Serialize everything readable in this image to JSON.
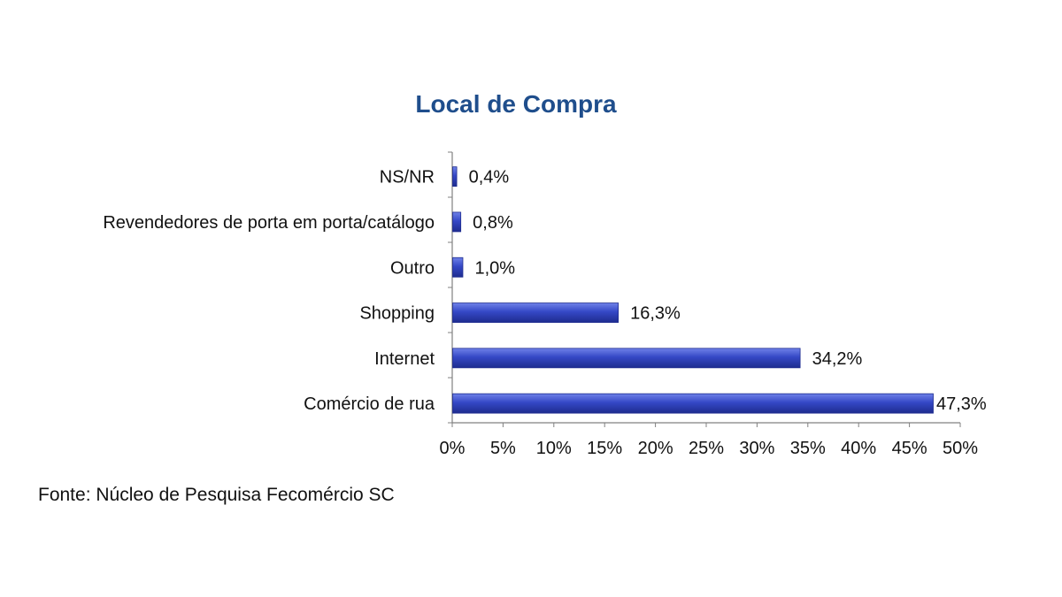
{
  "chart_data": {
    "type": "bar",
    "orientation": "horizontal",
    "title": "Local de Compra",
    "categories": [
      "NS/NR",
      "Revendedores de porta em porta/catálogo",
      "Outro",
      "Shopping",
      "Internet",
      "Comércio de rua"
    ],
    "values": [
      0.4,
      0.8,
      1.0,
      16.3,
      34.2,
      47.3
    ],
    "value_labels": [
      "0,4%",
      "0,8%",
      "1,0%",
      "16,3%",
      "34,2%",
      "47,3%"
    ],
    "xlim": [
      0,
      50
    ],
    "ticks": [
      0,
      5,
      10,
      15,
      20,
      25,
      30,
      35,
      40,
      45,
      50
    ],
    "tick_labels": [
      "0%",
      "5%",
      "10%",
      "15%",
      "20%",
      "25%",
      "30%",
      "35%",
      "40%",
      "45%",
      "50%"
    ],
    "grid": false,
    "legend": "none",
    "colors": {
      "title": "#1F4E8C",
      "bar": "#3548C6",
      "bar_light": "#6F82E8",
      "bar_dark": "#1E2C8F",
      "axis": "#808080"
    }
  },
  "source": "Fonte: Núcleo de Pesquisa Fecomércio SC"
}
